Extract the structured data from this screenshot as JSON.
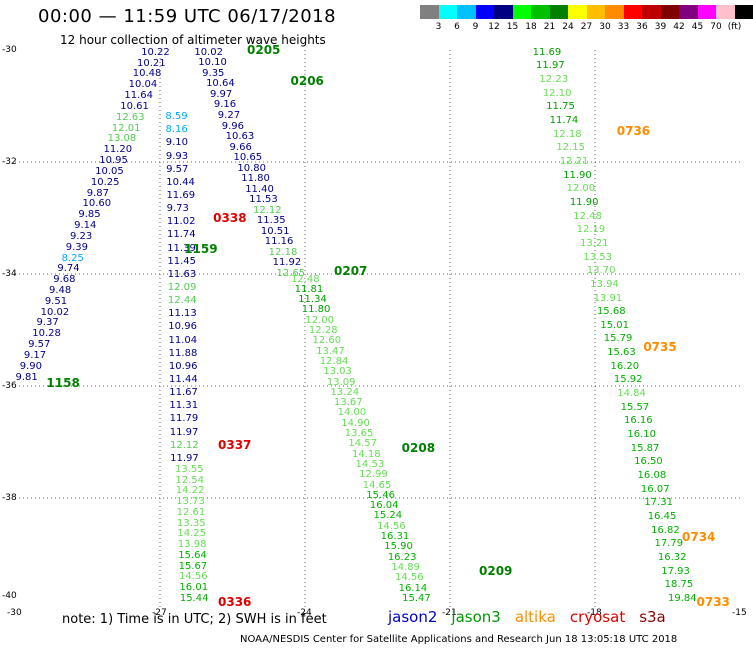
{
  "header": {
    "title": "00:00 — 11:59 UTC 06/17/2018",
    "subtitle": "12 hour collection of altimeter wave heights"
  },
  "colorbar": {
    "swatches": [
      "#808080",
      "#00ffff",
      "#00bfff",
      "#0000ff",
      "#000080",
      "#00ff00",
      "#00c000",
      "#008000",
      "#ffff00",
      "#ffbf00",
      "#ff8c00",
      "#ff0000",
      "#c00000",
      "#800000",
      "#800080",
      "#ff00ff",
      "#ffc0cb",
      "#000000"
    ],
    "labels": [
      "3",
      "6",
      "9",
      "12",
      "15",
      "18",
      "21",
      "24",
      "27",
      "30",
      "33",
      "36",
      "39",
      "42",
      "45",
      "70",
      "(ft)"
    ]
  },
  "axes": {
    "lon_ticks": [
      "-30",
      "-27",
      "-24",
      "-21",
      "-18",
      "-15"
    ],
    "lat_ticks": [
      "-30",
      "-32",
      "-34",
      "-36",
      "-38",
      "-40"
    ],
    "lon_range": [
      -30,
      -15
    ],
    "lat_range": [
      -30,
      -40
    ]
  },
  "tracks": [
    {
      "name": "jason2-a",
      "color": "#00008b",
      "start": [
        -27.1,
        -30.05
      ],
      "end": [
        -29.7,
        -35.85
      ],
      "values": [
        "10.22",
        "10.21",
        "10.48",
        "10.04",
        "11.64",
        "10.61",
        "12.63",
        "12.01",
        "13.08",
        "11.20",
        "10.95",
        "10.05",
        "10.25",
        "9.87",
        "10.60",
        "9.85",
        "9.14",
        "9.23",
        "9.39",
        "8.25",
        "9.74",
        "9.68",
        "9.48",
        "9.51",
        "10.02",
        "9.37",
        "10.28",
        "9.57",
        "9.17",
        "9.90",
        "9.81"
      ]
    },
    {
      "name": "jason2-b",
      "color": "#00008b",
      "start": [
        -26.0,
        -30.05
      ],
      "end": [
        -24.3,
        -34.0
      ],
      "values": [
        "10.02",
        "10.10",
        "9.35",
        "10.64",
        "9.97",
        "9.16",
        "9.27",
        "9.96",
        "10.63",
        "9.66",
        "10.65",
        "10.80",
        "11.80",
        "11.40",
        "11.53",
        "12.12",
        "11.35",
        "10.51",
        "11.16",
        "12.18",
        "11.92",
        "12.65"
      ]
    },
    {
      "name": "jason2-c",
      "color": "#00008b",
      "start": [
        -26.6,
        -31.2
      ],
      "end": [
        -26.5,
        -37.3
      ],
      "values": [
        "8.59",
        "8.16",
        "9.10",
        "9.93",
        "9.57",
        "10.44",
        "11.69",
        "9.73",
        "11.02",
        "11.74",
        "11.39",
        "11.45",
        "11.63",
        "12.09",
        "12.44",
        "11.13",
        "10.96",
        "11.04",
        "11.88",
        "10.96",
        "11.44",
        "11.67",
        "11.31",
        "11.79",
        "11.97",
        "12.12",
        "11.97"
      ]
    },
    {
      "name": "jason3-a",
      "color": "#00a000",
      "start": [
        -26.4,
        -37.5
      ],
      "end": [
        -26.3,
        -39.8
      ],
      "values": [
        "13.55",
        "12.54",
        "14.22",
        "13.73",
        "12.61",
        "13.35",
        "14.25",
        "13.98",
        "15.64",
        "15.67",
        "14.56",
        "16.01",
        "15.44"
      ]
    },
    {
      "name": "jason3-b",
      "color": "#00a000",
      "start": [
        -24.0,
        -34.1
      ],
      "end": [
        -21.7,
        -39.8
      ],
      "values": [
        "12.48",
        "11.81",
        "11.34",
        "11.80",
        "12.00",
        "12.28",
        "12.60",
        "13.47",
        "12.84",
        "13.03",
        "13.09",
        "13.24",
        "13.67",
        "14.00",
        "14.90",
        "13.65",
        "14.57",
        "14.18",
        "14.53",
        "12.99",
        "14.65",
        "15.46",
        "16.04",
        "15.24",
        "14.56",
        "16.31",
        "15.90",
        "16.23",
        "14.89",
        "14.56",
        "16.14",
        "15.47"
      ]
    },
    {
      "name": "jason3-c",
      "color": "#00a000",
      "start": [
        -19.0,
        -30.05
      ],
      "end": [
        -16.2,
        -39.8
      ],
      "values": [
        "11.69",
        "11.97",
        "12.23",
        "12.10",
        "11.75",
        "11.74",
        "12.18",
        "12.15",
        "12.21",
        "11.90",
        "12.00",
        "11.90",
        "12.48",
        "12.19",
        "13.21",
        "13.53",
        "13.70",
        "13.94",
        "13.91",
        "15.68",
        "15.01",
        "15.79",
        "15.63",
        "16.20",
        "15.92",
        "14.84",
        "15.57",
        "16.16",
        "16.10",
        "15.87",
        "16.50",
        "16.08",
        "16.07",
        "17.31",
        "16.45",
        "16.82",
        "17.79",
        "16.32",
        "17.93",
        "18.75",
        "19.84"
      ]
    }
  ],
  "passes": [
    {
      "label": "0205",
      "color": "#008000"
    },
    {
      "label": "0206",
      "color": "#008000"
    },
    {
      "label": "0338",
      "color": "#e00000"
    },
    {
      "label": "1159",
      "color": "#008000"
    },
    {
      "label": "0207",
      "color": "#008000"
    },
    {
      "label": "1158",
      "color": "#008000"
    },
    {
      "label": "0337",
      "color": "#e00000"
    },
    {
      "label": "0208",
      "color": "#008000"
    },
    {
      "label": "0336",
      "color": "#e00000"
    },
    {
      "label": "0209",
      "color": "#008000"
    },
    {
      "label": "0736",
      "color": "#ff8c00"
    },
    {
      "label": "0735",
      "color": "#ff8c00"
    },
    {
      "label": "0734",
      "color": "#ff8c00"
    },
    {
      "label": "0733",
      "color": "#ff8c00"
    }
  ],
  "note": "note: 1) Time is in UTC; 2) SWH is in feet",
  "legend": [
    {
      "name": "jason2",
      "color": "#0000cc"
    },
    {
      "name": "jason3",
      "color": "#009900"
    },
    {
      "name": "altika",
      "color": "#ff8c00"
    },
    {
      "name": "cryosat",
      "color": "#e00000"
    },
    {
      "name": "s3a",
      "color": "#8b0000"
    }
  ],
  "footer": "NOAA/NESDIS Center for Satellite Applications and Research   Jun 18 13:05:18 UTC 2018"
}
